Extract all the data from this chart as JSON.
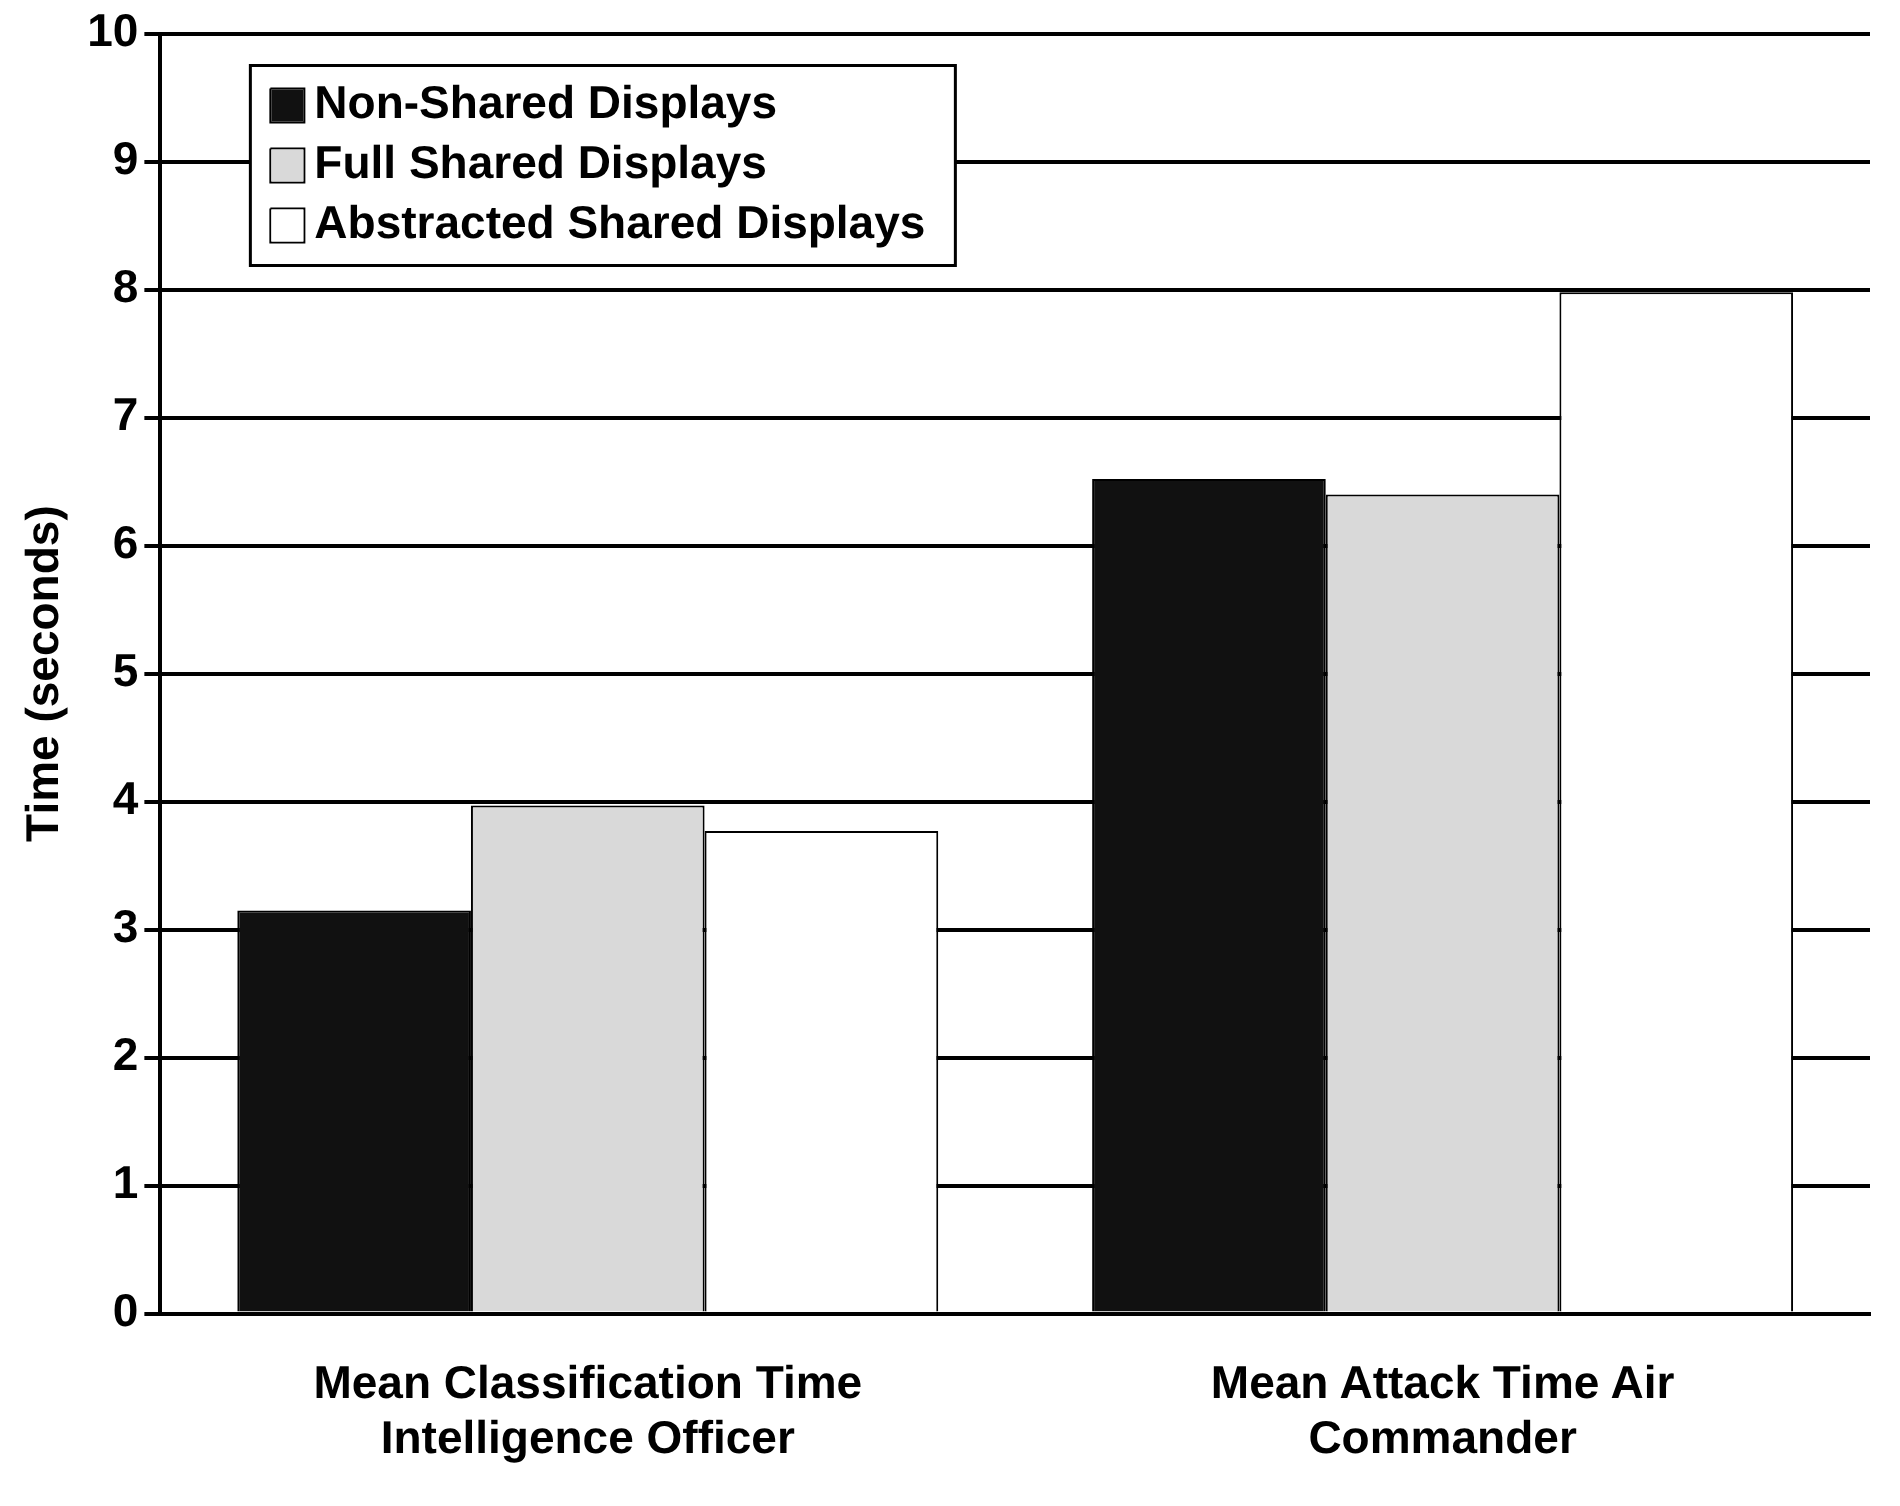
{
  "chart_data": {
    "type": "bar",
    "ylabel": "Time (seconds)",
    "categories": [
      "Mean Classification Time Intelligence Officer",
      "Mean Attack Time Air Commander"
    ],
    "series": [
      {
        "name": "Non-Shared Displays",
        "color": "#111111",
        "values": [
          3.15,
          6.52
        ]
      },
      {
        "name": "Full Shared Displays",
        "color": "#d9d9d9",
        "values": [
          3.97,
          6.4
        ]
      },
      {
        "name": "Abstracted Shared Displays",
        "color": "#ffffff",
        "values": [
          3.77,
          7.98
        ]
      }
    ],
    "ylim": [
      0,
      10
    ],
    "yticks": [
      0,
      1,
      2,
      3,
      4,
      5,
      6,
      7,
      8,
      9,
      10
    ],
    "grid": "y",
    "legend": "top left"
  }
}
